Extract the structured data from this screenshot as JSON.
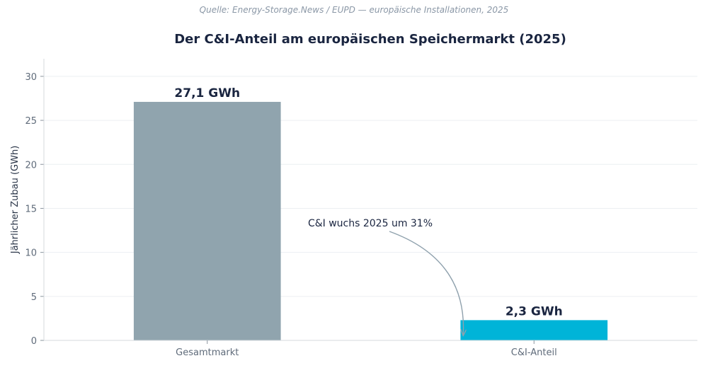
{
  "chart_data": {
    "type": "bar",
    "source": "Quelle: Energy-Storage.News / EUPD — europäische Installationen, 2025",
    "title": "Der C&I-Anteil am europäischen Speichermarkt (2025)",
    "xlabel": "",
    "ylabel": "Jährlicher Zubau (GWh)",
    "categories": [
      "Gesamtmarkt",
      "C&I-Anteil"
    ],
    "values": [
      27.1,
      2.3
    ],
    "value_labels": [
      "27,1 GWh",
      "2,3 GWh"
    ],
    "colors": [
      "#90a4ae",
      "#00b4d8"
    ],
    "ylim": [
      0,
      32
    ],
    "yticks": [
      0,
      5,
      10,
      15,
      20,
      25,
      30
    ],
    "grid": true,
    "annotation": {
      "text": "C&I wuchs 2025 um 31%",
      "target_category": "C&I-Anteil",
      "target_value": 2.3
    }
  }
}
